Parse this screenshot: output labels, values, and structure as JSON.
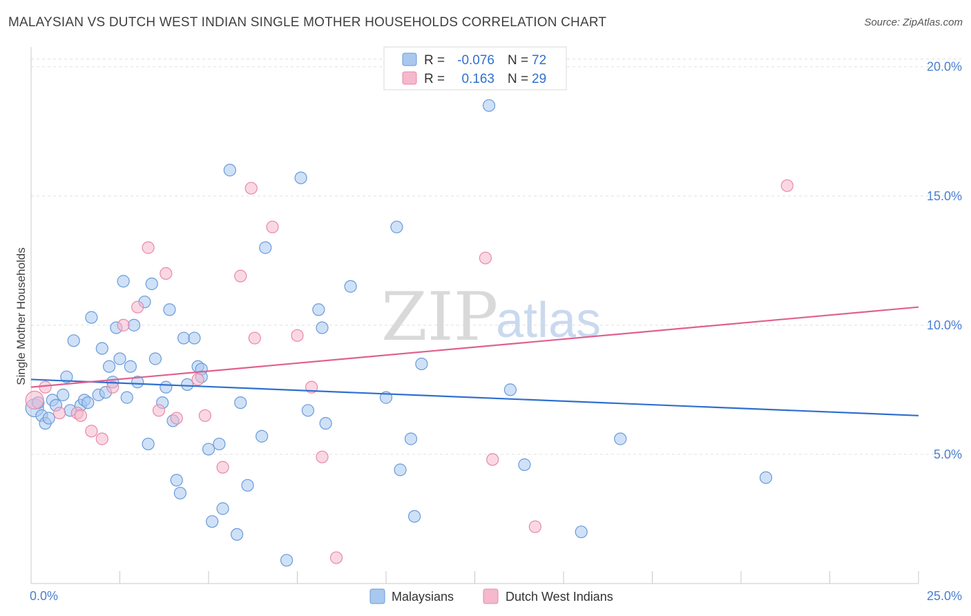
{
  "title": "MALAYSIAN VS DUTCH WEST INDIAN SINGLE MOTHER HOUSEHOLDS CORRELATION CHART",
  "source": "Source: ZipAtlas.com",
  "watermark": {
    "zip": "ZIP",
    "atlas": "atlas"
  },
  "legend": {
    "r_label": "R =",
    "n_label": "N =",
    "rows": [
      {
        "r": "-0.076",
        "n": "72",
        "color": "#a8c8f0"
      },
      {
        "r": "0.163",
        "n": "29",
        "color": "#f5b8cc"
      }
    ]
  },
  "chart_data": {
    "type": "scatter",
    "title": "MALAYSIAN VS DUTCH WEST INDIAN SINGLE MOTHER HOUSEHOLDS CORRELATION CHART",
    "xlabel": "",
    "ylabel": "Single Mother Households",
    "xlim": [
      0,
      25
    ],
    "ylim": [
      0,
      20.5
    ],
    "x_ticks": [
      {
        "v": 0,
        "label": "0.0%"
      },
      {
        "v": 25,
        "label": "25.0%"
      }
    ],
    "y_ticks": [
      {
        "v": 5,
        "label": "5.0%"
      },
      {
        "v": 10,
        "label": "10.0%"
      },
      {
        "v": 15,
        "label": "15.0%"
      },
      {
        "v": 20,
        "label": "20.0%"
      }
    ],
    "grid": true,
    "series": [
      {
        "name": "Malaysians",
        "color": "#a8c8f0",
        "stroke": "#6a9ad8",
        "trend": [
          [
            0,
            7.9
          ],
          [
            25,
            6.5
          ]
        ],
        "trend_color": "#2f6fd0",
        "points": [
          [
            0.1,
            6.8
          ],
          [
            0.3,
            6.5
          ],
          [
            0.4,
            6.2
          ],
          [
            0.5,
            6.4
          ],
          [
            0.6,
            7.1
          ],
          [
            0.7,
            6.9
          ],
          [
            0.9,
            7.3
          ],
          [
            1.0,
            8.0
          ],
          [
            1.1,
            6.7
          ],
          [
            1.2,
            9.4
          ],
          [
            1.4,
            6.9
          ],
          [
            1.5,
            7.1
          ],
          [
            1.6,
            7.0
          ],
          [
            1.7,
            10.3
          ],
          [
            1.9,
            7.3
          ],
          [
            2.0,
            9.1
          ],
          [
            2.1,
            7.4
          ],
          [
            2.2,
            8.4
          ],
          [
            2.3,
            7.8
          ],
          [
            2.4,
            9.9
          ],
          [
            2.5,
            8.7
          ],
          [
            2.6,
            11.7
          ],
          [
            2.7,
            7.2
          ],
          [
            2.8,
            8.4
          ],
          [
            2.9,
            10.0
          ],
          [
            3.0,
            7.8
          ],
          [
            3.2,
            10.9
          ],
          [
            3.3,
            5.4
          ],
          [
            3.4,
            11.6
          ],
          [
            3.5,
            8.7
          ],
          [
            3.7,
            7.0
          ],
          [
            3.8,
            7.6
          ],
          [
            3.9,
            10.6
          ],
          [
            4.0,
            6.3
          ],
          [
            4.1,
            4.0
          ],
          [
            4.2,
            3.5
          ],
          [
            4.3,
            9.5
          ],
          [
            4.4,
            7.7
          ],
          [
            4.6,
            9.5
          ],
          [
            4.7,
            8.4
          ],
          [
            4.8,
            8.3
          ],
          [
            4.8,
            8.0
          ],
          [
            5.0,
            5.2
          ],
          [
            5.1,
            2.4
          ],
          [
            5.3,
            5.4
          ],
          [
            5.4,
            2.9
          ],
          [
            5.6,
            16.0
          ],
          [
            5.8,
            1.9
          ],
          [
            5.9,
            7.0
          ],
          [
            6.1,
            3.8
          ],
          [
            6.5,
            5.7
          ],
          [
            6.6,
            13.0
          ],
          [
            7.2,
            0.9
          ],
          [
            7.6,
            15.7
          ],
          [
            7.8,
            6.7
          ],
          [
            8.1,
            10.6
          ],
          [
            8.2,
            9.9
          ],
          [
            8.3,
            6.2
          ],
          [
            9.0,
            11.5
          ],
          [
            10.0,
            7.2
          ],
          [
            10.3,
            13.8
          ],
          [
            10.4,
            4.4
          ],
          [
            10.7,
            5.6
          ],
          [
            10.8,
            2.6
          ],
          [
            11.0,
            8.5
          ],
          [
            12.9,
            18.5
          ],
          [
            13.5,
            7.5
          ],
          [
            13.9,
            4.6
          ],
          [
            15.5,
            2.0
          ],
          [
            16.6,
            5.6
          ],
          [
            20.7,
            4.1
          ],
          [
            0.2,
            7.0
          ]
        ]
      },
      {
        "name": "Dutch West Indians",
        "color": "#f5b8cc",
        "stroke": "#e888a8",
        "trend": [
          [
            0,
            7.6
          ],
          [
            25,
            10.7
          ]
        ],
        "trend_color": "#e06090",
        "points": [
          [
            0.1,
            7.1
          ],
          [
            0.4,
            7.6
          ],
          [
            0.8,
            6.6
          ],
          [
            1.3,
            6.6
          ],
          [
            1.4,
            6.5
          ],
          [
            1.7,
            5.9
          ],
          [
            2.0,
            5.6
          ],
          [
            2.3,
            7.6
          ],
          [
            2.6,
            10.0
          ],
          [
            3.0,
            10.7
          ],
          [
            3.3,
            13.0
          ],
          [
            3.6,
            6.7
          ],
          [
            3.8,
            12.0
          ],
          [
            4.1,
            6.4
          ],
          [
            4.7,
            7.9
          ],
          [
            4.9,
            6.5
          ],
          [
            5.4,
            4.5
          ],
          [
            5.9,
            11.9
          ],
          [
            6.2,
            15.3
          ],
          [
            6.3,
            9.5
          ],
          [
            6.8,
            13.8
          ],
          [
            7.5,
            9.6
          ],
          [
            7.9,
            7.6
          ],
          [
            8.2,
            4.9
          ],
          [
            8.6,
            1.0
          ],
          [
            12.8,
            12.6
          ],
          [
            13.0,
            4.8
          ],
          [
            14.2,
            2.2
          ],
          [
            21.3,
            15.4
          ]
        ]
      }
    ]
  },
  "bottom_legend": [
    {
      "label": "Malaysians",
      "color": "#a8c8f0"
    },
    {
      "label": "Dutch West Indians",
      "color": "#f5b8cc"
    }
  ]
}
